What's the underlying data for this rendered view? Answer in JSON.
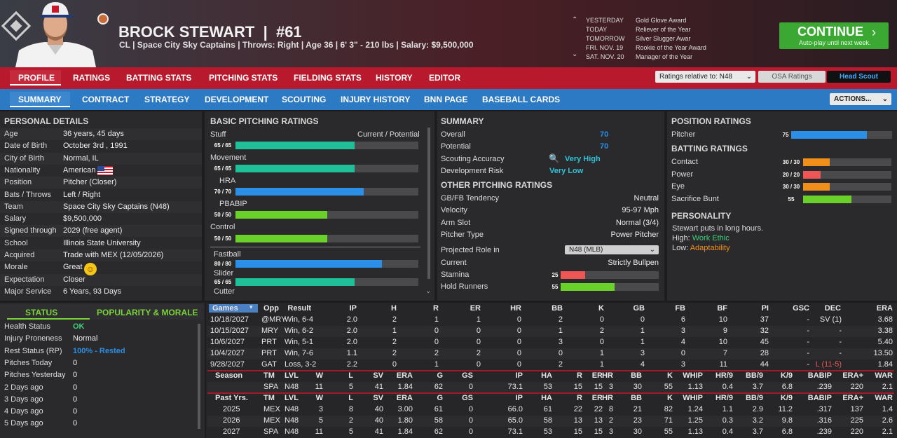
{
  "player": {
    "name": "BROCK STEWART",
    "sep": "|",
    "number": "#61",
    "info": "CL | Space City Sky Captains | Throws: Right | Age 36 | 6' 3\" - 210 lbs | Salary: $9,500,000"
  },
  "calendar": [
    {
      "day": "YESTERDAY",
      "event": "Gold Glove Award"
    },
    {
      "day": "TODAY",
      "event": "Reliever of the Year"
    },
    {
      "day": "TOMORROW",
      "event": "Silver Slugger Awar"
    },
    {
      "day": "FRI. NOV. 19",
      "event": "Rookie of the Year Award"
    },
    {
      "day": "SAT. NOV. 20",
      "event": "Manager of the Year"
    }
  ],
  "continue": {
    "label": "CONTINUE",
    "sub": "Auto-play until next week."
  },
  "nav1": [
    "PROFILE",
    "RATINGS",
    "BATTING STATS",
    "PITCHING STATS",
    "FIELDING STATS",
    "HISTORY",
    "EDITOR"
  ],
  "nav1_ctrl": {
    "relative": "Ratings relative to: N48",
    "osa": "OSA Ratings",
    "scout": "Head Scout"
  },
  "nav2": [
    "SUMMARY",
    "CONTRACT",
    "STRATEGY",
    "DEVELOPMENT",
    "SCOUTING",
    "INJURY HISTORY",
    "BNN PAGE",
    "BASEBALL CARDS"
  ],
  "actions": "ACTIONS...",
  "personal": {
    "title": "PERSONAL DETAILS",
    "rows": [
      [
        "Age",
        "36 years, 45 days"
      ],
      [
        "Date of Birth",
        "October 3rd , 1991"
      ],
      [
        "City of Birth",
        "Normal, IL"
      ],
      [
        "Nationality",
        "American"
      ],
      [
        "Position",
        "Pitcher (Closer)"
      ],
      [
        "Bats / Throws",
        "Left / Right"
      ],
      [
        "Team",
        "Space City Sky Captains (N48)"
      ],
      [
        "Salary",
        "$9,500,000"
      ],
      [
        "Signed through",
        "2029 (free agent)"
      ],
      [
        "School",
        "Illinois State University"
      ],
      [
        "Acquired",
        "Trade with MEX (12/05/2026)"
      ],
      [
        "Morale",
        "Great"
      ],
      [
        "Expectation",
        "Closer"
      ],
      [
        "Major Service",
        "6 Years, 93 Days"
      ]
    ]
  },
  "status": {
    "tab1": "STATUS",
    "tab2": "POPULARITY & MORALE",
    "rows": [
      [
        "Health Status",
        "OK"
      ],
      [
        "Injury Proneness",
        "Normal"
      ],
      [
        "Rest Status (RP)",
        "100% - Rested"
      ],
      [
        "Pitches Today",
        "0"
      ],
      [
        "Pitches Yesterday",
        "0"
      ],
      [
        "2 Days ago",
        "0"
      ],
      [
        "3 Days ago",
        "0"
      ],
      [
        "4 Days ago",
        "0"
      ],
      [
        "5 Days ago",
        "0"
      ]
    ]
  },
  "basic": {
    "title": "BASIC PITCHING RATINGS",
    "cp": "Current / Potential",
    "bars": [
      {
        "label": "Stuff",
        "num": "65 / 65",
        "v": 65,
        "color": "#1fbf9a"
      },
      {
        "label": "Movement",
        "num": "65 / 65",
        "v": 65,
        "color": "#1fbf9a"
      },
      {
        "label": "HRA",
        "num": "70 / 70",
        "v": 70,
        "color": "#2b8fe8"
      },
      {
        "label": "PBABIP",
        "num": "50 / 50",
        "v": 50,
        "color": "#6ad12a"
      },
      {
        "label": "Control",
        "num": "50 / 50",
        "v": 50,
        "color": "#6ad12a"
      },
      {
        "label": "Fastball",
        "num": "80 / 80",
        "v": 80,
        "color": "#2b8fe8"
      },
      {
        "label": "Slider",
        "num": "65 / 65",
        "v": 65,
        "color": "#1fbf9a"
      },
      {
        "label": "Cutter",
        "num": "",
        "v": 0,
        "color": "#1fbf9a"
      }
    ]
  },
  "summary": {
    "title": "SUMMARY",
    "rows": [
      [
        "Overall",
        "70"
      ],
      [
        "Potential",
        "70"
      ],
      [
        "Scouting Accuracy",
        "Very High"
      ],
      [
        "Development Risk",
        "Very Low"
      ]
    ]
  },
  "other": {
    "title": "OTHER PITCHING RATINGS",
    "rows": [
      [
        "GB/FB Tendency",
        "Neutral"
      ],
      [
        "Velocity",
        "95-97 Mph"
      ],
      [
        "Arm Slot",
        "Normal (3/4)"
      ],
      [
        "Pitcher Type",
        "Power Pitcher"
      ]
    ],
    "role_label": "Projected Role in",
    "role_val": "N48 (MLB)",
    "current_label": "Current",
    "current_val": "Strictly Bullpen",
    "stamina": {
      "label": "Stamina",
      "num": "25",
      "v": 25,
      "color": "#ee5555"
    },
    "hold": {
      "label": "Hold Runners",
      "num": "55",
      "v": 55,
      "color": "#6ad12a"
    }
  },
  "position": {
    "title": "POSITION RATINGS",
    "rows": [
      {
        "label": "Pitcher",
        "num": "75",
        "v": 75,
        "color": "#2b8fe8"
      }
    ]
  },
  "batting": {
    "title": "BATTING RATINGS",
    "rows": [
      {
        "label": "Contact",
        "num": "30 / 30",
        "v": 30,
        "color": "#f0901a"
      },
      {
        "label": "Power",
        "num": "20 / 20",
        "v": 20,
        "color": "#ee5555"
      },
      {
        "label": "Eye",
        "num": "30 / 30",
        "v": 30,
        "color": "#f0901a"
      },
      {
        "label": "Sacrifice Bunt",
        "num": "55",
        "v": 55,
        "color": "#6ad12a"
      }
    ]
  },
  "personality": {
    "title": "PERSONALITY",
    "line": "Stewart puts in long hours.",
    "high_label": "High:",
    "high": "Work Ethic",
    "low_label": "Low:",
    "low": "Adaptability"
  },
  "games": {
    "head": [
      "Games",
      "Opp",
      "Result",
      "IP",
      "H",
      "R",
      "ER",
      "HR",
      "BB",
      "K",
      "GB",
      "FB",
      "BF",
      "PI",
      "GSC",
      "DEC",
      "ERA"
    ],
    "rows": [
      [
        "10/18/2027",
        "@MRY",
        "Win, 6-4",
        "2.0",
        "2",
        "1",
        "1",
        "0",
        "2",
        "0",
        "0",
        "6",
        "10",
        "37",
        "-",
        "SV (1)",
        "3.68"
      ],
      [
        "10/15/2027",
        "MRY",
        "Win, 6-2",
        "2.0",
        "1",
        "0",
        "0",
        "0",
        "1",
        "2",
        "1",
        "3",
        "9",
        "32",
        "-",
        "-",
        "3.38"
      ],
      [
        "10/6/2027",
        "PRT",
        "Win, 5-1",
        "2.0",
        "2",
        "0",
        "0",
        "0",
        "3",
        "0",
        "1",
        "4",
        "10",
        "45",
        "-",
        "-",
        "5.40"
      ],
      [
        "10/4/2027",
        "PRT",
        "Win, 7-6",
        "1.1",
        "2",
        "2",
        "2",
        "0",
        "0",
        "1",
        "3",
        "0",
        "7",
        "28",
        "-",
        "-",
        "13.50"
      ],
      [
        "9/28/2027",
        "GAT",
        "Loss, 3-2",
        "2.2",
        "0",
        "1",
        "0",
        "0",
        "2",
        "1",
        "4",
        "3",
        "11",
        "44",
        "-",
        "L (11-5)",
        "1.84"
      ]
    ]
  },
  "season": {
    "head": [
      "Season",
      "TM",
      "LVL",
      "W",
      "L",
      "SV",
      "ERA",
      "G",
      "GS",
      "IP",
      "HA",
      "R",
      "ER",
      "HR",
      "BB",
      "K",
      "WHIP",
      "HR/9",
      "BB/9",
      "K/9",
      "BABIP",
      "ERA+",
      "WAR"
    ],
    "rows": [
      [
        "",
        "SPA",
        "N48",
        "11",
        "5",
        "41",
        "1.84",
        "62",
        "0",
        "73.1",
        "53",
        "15",
        "15",
        "3",
        "30",
        "55",
        "1.13",
        "0.4",
        "3.7",
        "6.8",
        ".239",
        "220",
        "2.1"
      ]
    ]
  },
  "past": {
    "head": [
      "Past Yrs.",
      "TM",
      "LVL",
      "W",
      "L",
      "SV",
      "ERA",
      "G",
      "GS",
      "IP",
      "HA",
      "R",
      "ER",
      "HR",
      "BB",
      "K",
      "WHIP",
      "HR/9",
      "BB/9",
      "K/9",
      "BABIP",
      "ERA+",
      "WAR"
    ],
    "rows": [
      [
        "2025",
        "MEX",
        "N48",
        "3",
        "8",
        "40",
        "3.00",
        "61",
        "0",
        "66.0",
        "61",
        "22",
        "22",
        "8",
        "21",
        "82",
        "1.24",
        "1.1",
        "2.9",
        "11.2",
        ".317",
        "137",
        "1.4"
      ],
      [
        "2026",
        "MEX",
        "N48",
        "5",
        "2",
        "40",
        "1.80",
        "58",
        "0",
        "65.0",
        "58",
        "13",
        "13",
        "2",
        "23",
        "71",
        "1.25",
        "0.3",
        "3.2",
        "9.8",
        ".316",
        "225",
        "2.6"
      ],
      [
        "2027",
        "SPA",
        "N48",
        "11",
        "5",
        "41",
        "1.84",
        "62",
        "0",
        "73.1",
        "53",
        "15",
        "15",
        "3",
        "30",
        "55",
        "1.13",
        "0.4",
        "3.7",
        "6.8",
        ".239",
        "220",
        "2.1"
      ]
    ]
  }
}
